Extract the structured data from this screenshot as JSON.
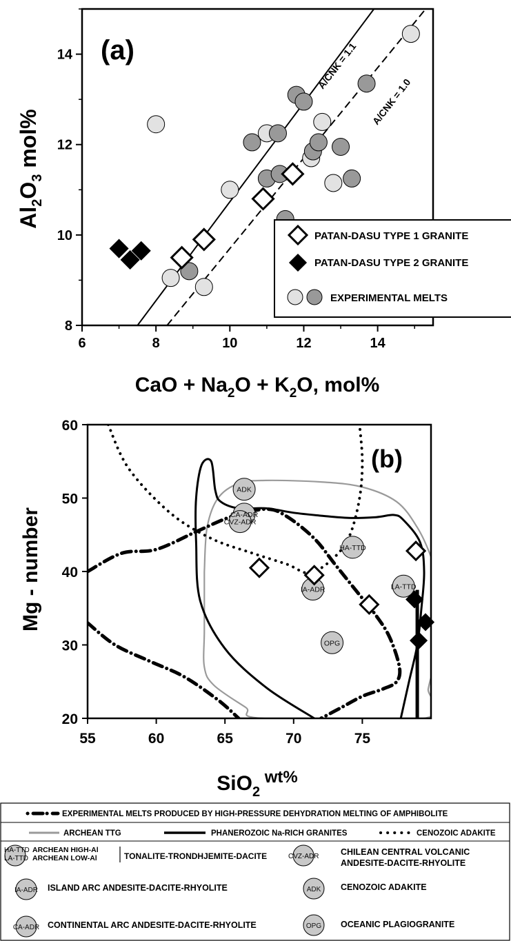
{
  "chart_data": [
    {
      "type": "scatter",
      "panel_label": "(a)",
      "xlabel_parts": [
        "CaO + Na",
        "2",
        "O + K",
        "2",
        "O, mol%"
      ],
      "ylabel_parts": [
        "Al",
        "2",
        "O",
        "3",
        "  mol%"
      ],
      "xlim": [
        6,
        15.5
      ],
      "ylim": [
        8,
        15
      ],
      "xticks": [
        6,
        8,
        10,
        12,
        14
      ],
      "yticks": [
        8,
        10,
        12,
        14
      ],
      "reference_lines": [
        {
          "label": "A/CNK = 1.1",
          "style": "solid",
          "points": [
            [
              7.5,
              8
            ],
            [
              13.9,
              15
            ]
          ]
        },
        {
          "label": "A/CNK = 1.0",
          "style": "dashed",
          "points": [
            [
              8.3,
              8
            ],
            [
              15.3,
              15
            ]
          ]
        }
      ],
      "legend_position": "bottom-right",
      "legend": [
        {
          "label": "PATAN-DASU TYPE 1 GRANITE",
          "marker": "open-diamond"
        },
        {
          "label": "PATAN-DASU TYPE 2 GRANITE",
          "marker": "filled-diamond"
        },
        {
          "label": "EXPERIMENTAL MELTS",
          "marker": "circles"
        }
      ],
      "series": [
        {
          "name": "PATAN-DASU TYPE 1 GRANITE",
          "marker": "open-diamond",
          "points": [
            [
              8.7,
              9.5
            ],
            [
              9.3,
              9.9
            ],
            [
              10.9,
              10.8
            ],
            [
              11.7,
              11.35
            ]
          ]
        },
        {
          "name": "PATAN-DASU TYPE 2 GRANITE",
          "marker": "filled-diamond",
          "points": [
            [
              7.0,
              9.7
            ],
            [
              7.3,
              9.45
            ],
            [
              7.6,
              9.65
            ]
          ]
        },
        {
          "marker": "light-circle",
          "points": [
            [
              8.0,
              12.45
            ],
            [
              8.4,
              9.05
            ],
            [
              9.3,
              8.85
            ],
            [
              10.0,
              11.0
            ],
            [
              11.0,
              12.25
            ],
            [
              12.2,
              11.7
            ],
            [
              12.5,
              12.5
            ],
            [
              12.8,
              11.15
            ],
            [
              14.9,
              14.45
            ]
          ]
        },
        {
          "marker": "dark-circle",
          "points": [
            [
              8.9,
              9.2
            ],
            [
              10.6,
              12.05
            ],
            [
              11.0,
              11.25
            ],
            [
              11.3,
              12.25
            ],
            [
              11.35,
              11.35
            ],
            [
              11.5,
              10.35
            ],
            [
              11.8,
              13.1
            ],
            [
              12.0,
              12.95
            ],
            [
              12.25,
              11.85
            ],
            [
              12.4,
              12.05
            ],
            [
              13.0,
              11.95
            ],
            [
              13.3,
              11.25
            ],
            [
              13.7,
              13.35
            ]
          ]
        }
      ]
    },
    {
      "type": "scatter",
      "panel_label": "(b)",
      "xlabel_parts": [
        "SiO",
        "2",
        " wt%"
      ],
      "ylabel": "Mg - number",
      "xlim": [
        55,
        80
      ],
      "ylim": [
        20,
        60
      ],
      "xticks": [
        55,
        60,
        65,
        70,
        75
      ],
      "yticks": [
        20,
        30,
        40,
        50,
        60
      ],
      "series": [
        {
          "name": "PATAN-DASU TYPE 1 GRANITE",
          "marker": "open-diamond",
          "points": [
            [
              67.5,
              40.5
            ],
            [
              71.5,
              39.5
            ],
            [
              75.5,
              35.5
            ],
            [
              78.9,
              42.8
            ]
          ]
        },
        {
          "name": "PATAN-DASU TYPE 2 GRANITE",
          "marker": "filled-diamond",
          "points": [
            [
              78.8,
              36.2
            ],
            [
              79.6,
              33.1
            ],
            [
              79.1,
              30.6
            ]
          ]
        }
      ],
      "fields": [
        {
          "code": "ADK",
          "x": 66.4,
          "y": 51.2
        },
        {
          "code": "CA-ADR",
          "x": 66.4,
          "y": 47.8
        },
        {
          "code": "CVZ-ADR",
          "x": 66.1,
          "y": 46.8
        },
        {
          "code": "HA-TTD",
          "x": 74.3,
          "y": 43.3
        },
        {
          "code": "LA-TTD",
          "x": 78.0,
          "y": 38.0
        },
        {
          "code": "IA-ADR",
          "x": 71.4,
          "y": 37.6
        },
        {
          "code": "OPG",
          "x": 72.8,
          "y": 30.3
        }
      ],
      "curves": [
        {
          "name": "ARCHEAN TTG",
          "style": "gray",
          "points": [
            [
              63.5,
              40
            ],
            [
              63.7,
              46
            ],
            [
              64.5,
              50
            ],
            [
              66,
              52
            ],
            [
              68,
              52.4
            ],
            [
              72,
              52.2
            ],
            [
              75,
              51.5
            ],
            [
              77.5,
              49.5
            ],
            [
              79,
              46
            ],
            [
              80,
              42
            ],
            [
              80.8,
              37
            ],
            [
              81.3,
              33
            ],
            [
              81,
              29
            ],
            [
              80.2,
              26.5
            ],
            [
              79.8,
              24
            ],
            [
              79.5,
              20
            ],
            [
              67.8,
              20
            ],
            [
              66.5,
              21.5
            ],
            [
              64.2,
              24.5
            ],
            [
              63.5,
              27
            ],
            [
              63.5,
              32
            ],
            [
              63.5,
              40
            ]
          ]
        },
        {
          "name": "PHANEROZOIC Na-RICH GRANITES",
          "style": "solid",
          "points": [
            [
              71.5,
              20
            ],
            [
              68,
              24.2
            ],
            [
              65,
              29.5
            ],
            [
              63.2,
              36
            ],
            [
              62.9,
              44
            ],
            [
              62.9,
              50
            ],
            [
              63.3,
              54.5
            ],
            [
              64,
              55
            ],
            [
              64.3,
              51
            ],
            [
              64.7,
              49.5
            ],
            [
              66,
              48.6
            ],
            [
              68,
              48.6
            ],
            [
              70,
              48
            ],
            [
              72,
              47.6
            ],
            [
              74,
              47.3
            ],
            [
              76,
              47.4
            ],
            [
              77.3,
              47.7
            ],
            [
              78,
              47
            ],
            [
              79.2,
              44
            ],
            [
              79.5,
              40
            ],
            [
              79.3,
              35
            ],
            [
              79,
              30
            ],
            [
              78.4,
              25
            ],
            [
              77.8,
              20
            ]
          ]
        },
        {
          "name": "EXPERIMENTAL MELTS PRODUCED BY HIGH-PRESSURE  DEHYDRATION MELTING OF AMPHIBOLITE",
          "style": "dash-dot",
          "points": [
            [
              55,
              40
            ],
            [
              57.5,
              42.5
            ],
            [
              60,
              43
            ],
            [
              63,
              45.5
            ],
            [
              65.5,
              47.5
            ],
            [
              68,
              48.5
            ],
            [
              69.5,
              47.5
            ],
            [
              71.5,
              44.5
            ],
            [
              73,
              41
            ],
            [
              74.5,
              37.5
            ],
            [
              76,
              34
            ],
            [
              77,
              31
            ],
            [
              77.7,
              27
            ],
            [
              77.5,
              25
            ],
            [
              76.5,
              24
            ],
            [
              75,
              23
            ],
            [
              73.5,
              21.5
            ],
            [
              72,
              20
            ]
          ]
        },
        {
          "name": "",
          "style": "dash-dot",
          "points": [
            [
              55,
              33
            ],
            [
              57,
              30
            ],
            [
              59.5,
              27.8
            ],
            [
              62,
              25.7
            ],
            [
              64.5,
              22.5
            ],
            [
              66,
              20
            ]
          ]
        },
        {
          "name": "CENOZOIC ADAKITE",
          "style": "dotted",
          "points": [
            [
              56.5,
              60
            ],
            [
              58,
              54
            ],
            [
              61,
              48
            ],
            [
              64,
              44.5
            ],
            [
              67,
              42.5
            ],
            [
              69.5,
              41
            ],
            [
              71.2,
              39.8
            ],
            [
              73,
              42
            ],
            [
              74.1,
              45
            ],
            [
              74.8,
              50
            ],
            [
              75,
              55
            ],
            [
              74.8,
              60
            ]
          ]
        }
      ]
    }
  ],
  "legend_b": {
    "exp_melts": "EXPERIMENTAL MELTS PRODUCED BY HIGH-PRESSURE  DEHYDRATION MELTING OF AMPHIBOLITE",
    "archean_ttg": "ARCHEAN  TTG",
    "phanerozoic": "PHANEROZOIC Na-RICH GRANITES",
    "cenozoic": "CENOZOIC ADAKITE",
    "ha_code": "HA-TTD",
    "la_code": "LA-TTD",
    "ha_name": "ARCHEAN HIGH-Al",
    "la_name": "ARCHEAN LOW-Al",
    "ttd_name": "TONALITE-TRONDHJEMITE-DACITE",
    "cvz_code": "CVZ-ADR",
    "cvz_line1": "CHILEAN CENTRAL VOLCANIC",
    "cvz_line2": "ANDESITE-DACITE-RHYOLITE",
    "ia_code": "IA-ADR",
    "ia_name": "ISLAND ARC ANDESITE-DACITE-RHYOLITE",
    "adk_code": "ADK",
    "adk_name": "CENOZOIC ADAKITE",
    "ca_code": "CA-ADR",
    "ca_name": "CONTINENTAL ARC ANDESITE-DACITE-RHYOLITE",
    "opg_code": "OPG",
    "opg_name": "OCEANIC PLAGIOGRANITE"
  }
}
